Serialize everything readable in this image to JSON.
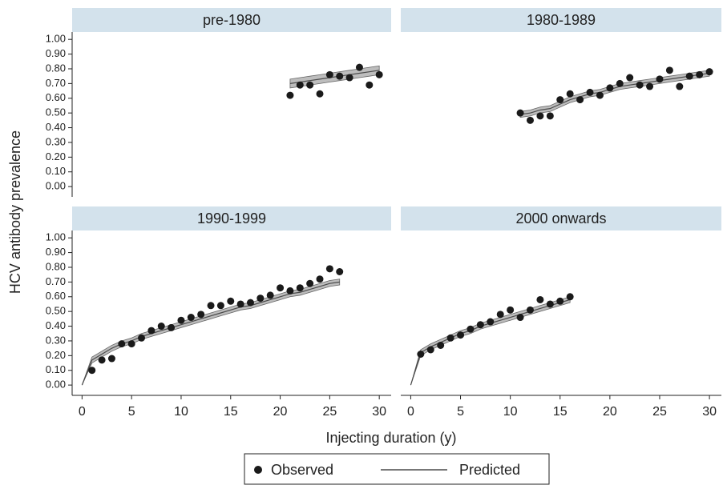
{
  "chart_data": [
    {
      "type": "scatter",
      "title": "pre-1980",
      "x": [
        21,
        22,
        23,
        24,
        25,
        26,
        27,
        28,
        29,
        30
      ],
      "series": [
        {
          "values": [
            0.62,
            0.69,
            0.69,
            0.63,
            0.76,
            0.75,
            0.74,
            0.81,
            0.69,
            0.76
          ]
        },
        {
          "values": [
            0.7,
            0.71,
            0.72,
            0.73,
            0.74,
            0.75,
            0.76,
            0.77,
            0.78,
            0.79
          ],
          "lower": [
            0.67,
            0.68,
            0.69,
            0.7,
            0.71,
            0.72,
            0.73,
            0.74,
            0.75,
            0.76
          ],
          "upper": [
            0.73,
            0.74,
            0.75,
            0.76,
            0.77,
            0.78,
            0.79,
            0.8,
            0.81,
            0.82
          ]
        }
      ]
    },
    {
      "type": "scatter",
      "title": "1980-1989",
      "x": [
        11,
        12,
        13,
        14,
        15,
        16,
        17,
        18,
        19,
        20,
        21,
        22,
        23,
        24,
        25,
        26,
        27,
        28,
        29,
        30
      ],
      "series": [
        {
          "values": [
            0.5,
            0.45,
            0.48,
            0.48,
            0.59,
            0.63,
            0.59,
            0.64,
            0.62,
            0.67,
            0.7,
            0.74,
            0.69,
            0.68,
            0.73,
            0.79,
            0.68,
            0.75,
            0.76,
            0.78
          ]
        },
        {
          "values": [
            0.49,
            0.5,
            0.52,
            0.53,
            0.56,
            0.59,
            0.61,
            0.63,
            0.64,
            0.66,
            0.68,
            0.69,
            0.7,
            0.71,
            0.72,
            0.73,
            0.74,
            0.75,
            0.76,
            0.77
          ],
          "lower": [
            0.47,
            0.48,
            0.5,
            0.51,
            0.54,
            0.57,
            0.59,
            0.61,
            0.62,
            0.64,
            0.66,
            0.67,
            0.68,
            0.69,
            0.7,
            0.71,
            0.72,
            0.73,
            0.74,
            0.75
          ],
          "upper": [
            0.51,
            0.52,
            0.54,
            0.55,
            0.58,
            0.61,
            0.63,
            0.65,
            0.66,
            0.68,
            0.7,
            0.71,
            0.72,
            0.73,
            0.74,
            0.75,
            0.76,
            0.77,
            0.78,
            0.79
          ]
        }
      ]
    },
    {
      "type": "scatter",
      "title": "1990-1999",
      "x": [
        0,
        1,
        2,
        3,
        4,
        5,
        6,
        7,
        8,
        9,
        10,
        11,
        12,
        13,
        14,
        15,
        16,
        17,
        18,
        19,
        20,
        21,
        22,
        23,
        24,
        25,
        26
      ],
      "series": [
        {
          "values": [
            null,
            0.1,
            0.17,
            0.18,
            0.28,
            0.28,
            0.32,
            0.37,
            0.4,
            0.39,
            0.44,
            0.46,
            0.48,
            0.54,
            0.54,
            0.57,
            0.55,
            0.56,
            0.59,
            0.61,
            0.66,
            0.64,
            0.66,
            0.69,
            0.72,
            0.79,
            0.77
          ]
        },
        {
          "values": [
            0,
            0.17,
            0.21,
            0.25,
            0.28,
            0.3,
            0.33,
            0.35,
            0.37,
            0.39,
            0.41,
            0.43,
            0.45,
            0.47,
            0.49,
            0.51,
            0.53,
            0.54,
            0.56,
            0.58,
            0.6,
            0.62,
            0.63,
            0.65,
            0.67,
            0.69,
            0.7
          ],
          "lower": [
            0,
            0.15,
            0.19,
            0.23,
            0.26,
            0.28,
            0.31,
            0.33,
            0.35,
            0.37,
            0.39,
            0.41,
            0.43,
            0.45,
            0.47,
            0.49,
            0.51,
            0.52,
            0.54,
            0.56,
            0.58,
            0.6,
            0.61,
            0.63,
            0.65,
            0.67,
            0.68
          ],
          "upper": [
            0,
            0.19,
            0.23,
            0.27,
            0.3,
            0.32,
            0.35,
            0.37,
            0.39,
            0.41,
            0.43,
            0.45,
            0.47,
            0.49,
            0.51,
            0.53,
            0.55,
            0.56,
            0.58,
            0.6,
            0.62,
            0.64,
            0.65,
            0.67,
            0.69,
            0.71,
            0.72
          ]
        }
      ]
    },
    {
      "type": "scatter",
      "title": "2000 onwards",
      "x": [
        0,
        1,
        2,
        3,
        4,
        5,
        6,
        7,
        8,
        9,
        10,
        11,
        12,
        13,
        14,
        15,
        16
      ],
      "series": [
        {
          "values": [
            null,
            0.21,
            0.24,
            0.27,
            0.32,
            0.34,
            0.38,
            0.41,
            0.43,
            0.48,
            0.51,
            0.46,
            0.51,
            0.58,
            0.55,
            0.57,
            0.6
          ]
        },
        {
          "values": [
            0,
            0.22,
            0.26,
            0.29,
            0.32,
            0.35,
            0.37,
            0.4,
            0.42,
            0.44,
            0.46,
            0.48,
            0.5,
            0.52,
            0.54,
            0.56,
            0.58
          ],
          "lower": [
            0,
            0.2,
            0.24,
            0.27,
            0.3,
            0.33,
            0.35,
            0.38,
            0.4,
            0.42,
            0.44,
            0.46,
            0.48,
            0.5,
            0.52,
            0.54,
            0.56
          ],
          "upper": [
            0,
            0.24,
            0.28,
            0.31,
            0.34,
            0.37,
            0.39,
            0.42,
            0.44,
            0.46,
            0.48,
            0.5,
            0.52,
            0.54,
            0.56,
            0.58,
            0.6
          ]
        }
      ]
    }
  ],
  "axes": {
    "xlabel": "Injecting duration (y)",
    "ylabel": "HCV antibody prevalence",
    "xlim": [
      -1,
      31.2
    ],
    "xticks": [
      0,
      5,
      10,
      15,
      20,
      25,
      30
    ],
    "ylim": [
      -0.07,
      1.05
    ],
    "yticks": [
      {
        "value": 0,
        "label": "0.00"
      },
      {
        "value": 0.1,
        "label": "0.10"
      },
      {
        "value": 0.2,
        "label": "0.20"
      },
      {
        "value": 0.3,
        "label": "0.30"
      },
      {
        "value": 0.4,
        "label": "0.40"
      },
      {
        "value": 0.5,
        "label": "0.50"
      },
      {
        "value": 0.6,
        "label": "0.60"
      },
      {
        "value": 0.7,
        "label": "0.70"
      },
      {
        "value": 0.8,
        "label": "0.80"
      },
      {
        "value": 0.9,
        "label": "0.90"
      },
      {
        "value": 1,
        "label": "1.00"
      }
    ]
  },
  "legend": {
    "position": "bottom",
    "items": [
      {
        "name": "Observed",
        "color": "#1a1a1a"
      },
      {
        "name": "Predicted",
        "color": "#4a4a4a"
      }
    ]
  }
}
